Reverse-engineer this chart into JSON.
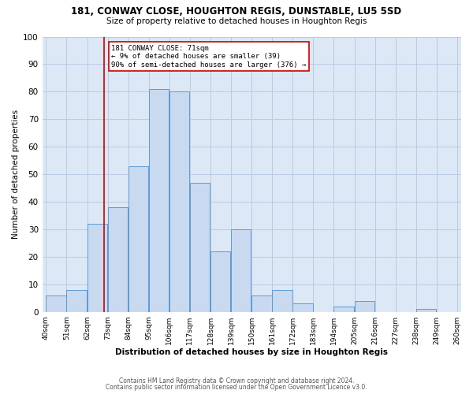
{
  "title1": "181, CONWAY CLOSE, HOUGHTON REGIS, DUNSTABLE, LU5 5SD",
  "title2": "Size of property relative to detached houses in Houghton Regis",
  "xlabel": "Distribution of detached houses by size in Houghton Regis",
  "ylabel": "Number of detached properties",
  "bin_labels": [
    "40sqm",
    "51sqm",
    "62sqm",
    "73sqm",
    "84sqm",
    "95sqm",
    "106sqm",
    "117sqm",
    "128sqm",
    "139sqm",
    "150sqm",
    "161sqm",
    "172sqm",
    "183sqm",
    "194sqm",
    "205sqm",
    "216sqm",
    "227sqm",
    "238sqm",
    "249sqm",
    "260sqm"
  ],
  "bin_edges": [
    40,
    51,
    62,
    73,
    84,
    95,
    106,
    117,
    128,
    139,
    150,
    161,
    172,
    183,
    194,
    205,
    216,
    227,
    238,
    249,
    260
  ],
  "counts": [
    6,
    8,
    32,
    38,
    53,
    81,
    80,
    47,
    22,
    30,
    6,
    8,
    3,
    0,
    2,
    4,
    0,
    0,
    1,
    0
  ],
  "bar_color": "#c9d9f0",
  "bar_edge_color": "#5b9bd5",
  "property_value": 71,
  "vline_color": "#cc0000",
  "annotation_text": "181 CONWAY CLOSE: 71sqm\n← 9% of detached houses are smaller (39)\n90% of semi-detached houses are larger (376) →",
  "annotation_box_color": "#ffffff",
  "annotation_box_edge": "#cc0000",
  "ylim": [
    0,
    100
  ],
  "footer1": "Contains HM Land Registry data © Crown copyright and database right 2024.",
  "footer2": "Contains public sector information licensed under the Open Government Licence v3.0.",
  "bg_color": "#ffffff",
  "plot_bg_color": "#dce8f5",
  "grid_color": "#b8cce4"
}
